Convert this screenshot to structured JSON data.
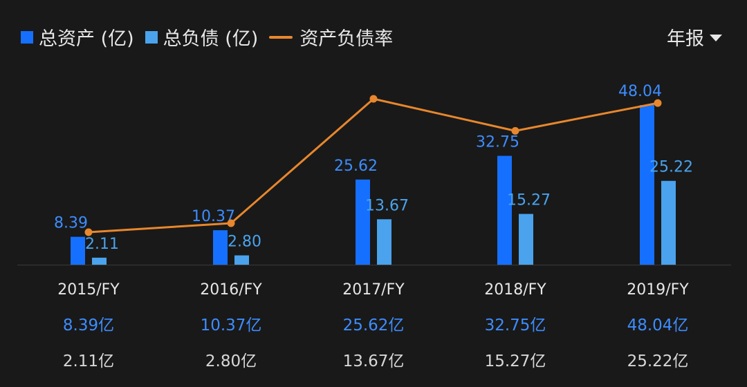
{
  "legend": {
    "total_assets": "总资产 (亿)",
    "total_liabilities": "总负债 (亿)",
    "debt_ratio": "资产负债率"
  },
  "period_selector": {
    "label": "年报"
  },
  "colors": {
    "total_assets": "#1570ff",
    "total_liabilities": "#4aa3ec",
    "debt_ratio": "#e8872d",
    "background": "#191919",
    "value_text": "#3d8dff"
  },
  "chart_data": {
    "type": "bar",
    "categories": [
      "2015/FY",
      "2016/FY",
      "2017/FY",
      "2018/FY",
      "2019/FY"
    ],
    "series": [
      {
        "name": "总资产 (亿)",
        "type": "bar",
        "values": [
          8.39,
          10.37,
          25.62,
          32.75,
          48.04
        ]
      },
      {
        "name": "总负债 (亿)",
        "type": "bar",
        "values": [
          2.11,
          2.8,
          13.67,
          15.27,
          25.22
        ]
      },
      {
        "name": "资产负债率",
        "type": "line",
        "values": [
          25.1,
          27.0,
          53.4,
          46.6,
          52.5
        ]
      }
    ],
    "bar_labels": {
      "total_assets": [
        "8.39",
        "10.37",
        "25.62",
        "32.75",
        "48.04"
      ],
      "total_liabilities": [
        "2.11",
        "2.80",
        "13.67",
        "15.27",
        "25.22"
      ]
    },
    "summary_rows": {
      "total_assets": [
        "8.39亿",
        "10.37亿",
        "25.62亿",
        "32.75亿",
        "48.04亿"
      ],
      "total_liabilities": [
        "2.11亿",
        "2.80亿",
        "13.67亿",
        "15.27亿",
        "25.22亿"
      ]
    },
    "ylim": [
      0,
      48.04
    ],
    "ratio_range": [
      25.1,
      53.4
    ],
    "grid": false,
    "legend_position": "top-left"
  }
}
